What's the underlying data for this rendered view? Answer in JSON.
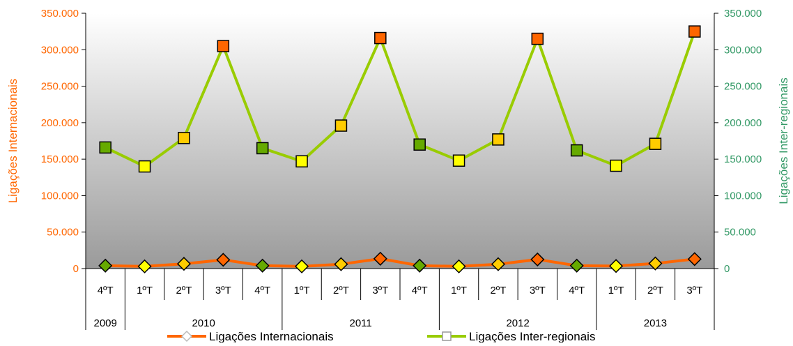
{
  "chart_data": {
    "type": "line",
    "categories": [
      "4ºT",
      "1ºT",
      "2ºT",
      "3ºT",
      "4ºT",
      "1ºT",
      "2ºT",
      "3ºT",
      "4ºT",
      "1ºT",
      "2ºT",
      "3ºT",
      "4ºT",
      "1ºT",
      "2ºT",
      "3ºT"
    ],
    "year_groups": [
      {
        "label": "2009",
        "count": 1
      },
      {
        "label": "2010",
        "count": 4
      },
      {
        "label": "2011",
        "count": 4
      },
      {
        "label": "2012",
        "count": 4
      },
      {
        "label": "2013",
        "count": 3
      }
    ],
    "y_left": {
      "label": "Ligações Internacionais",
      "ylim": [
        0,
        350000
      ],
      "ticks": [
        "0",
        "50.000",
        "100.000",
        "150.000",
        "200.000",
        "250.000",
        "300.000",
        "350.000"
      ],
      "color": "#ff6600"
    },
    "y_right": {
      "label": "Ligações Inter-regionais",
      "ylim": [
        0,
        350000
      ],
      "ticks": [
        "0",
        "50.000",
        "100.000",
        "150.000",
        "200.000",
        "250.000",
        "300.000",
        "350.000"
      ],
      "color": "#339966"
    },
    "series": [
      {
        "name": "Ligações Internacionais",
        "axis": "left",
        "line_color": "#ff6600",
        "legend_marker": "diamond",
        "values": [
          4000,
          3000,
          6500,
          12000,
          4000,
          3000,
          6000,
          13500,
          4000,
          3000,
          6000,
          12500,
          4000,
          3500,
          7000,
          13000
        ]
      },
      {
        "name": "Ligações Inter-regionais",
        "axis": "right",
        "line_color": "#99cc00",
        "legend_marker": "square",
        "values": [
          166000,
          140000,
          179000,
          305000,
          165000,
          147000,
          196000,
          316000,
          170000,
          148000,
          177000,
          315000,
          162000,
          141000,
          171000,
          325000
        ]
      }
    ],
    "marker_colors_by_quarter": {
      "1ºT": "#ffff00",
      "2ºT": "#ffcc00",
      "3ºT": "#ff6600",
      "4ºT": "#66aa00"
    },
    "plot_background": "gradient white-to-gray",
    "grid": false,
    "legend_position": "bottom"
  }
}
